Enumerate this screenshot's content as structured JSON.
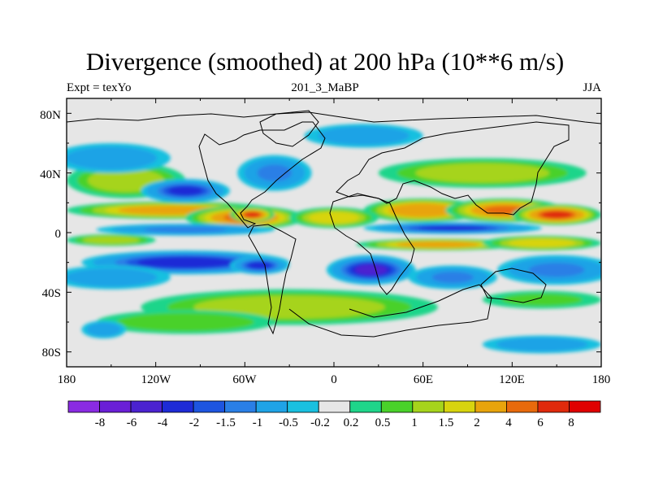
{
  "title": "Divergence (smoothed) at 200 hPa (10**6 m/s)",
  "left_string": "Expt = texYo",
  "center_string": "201_3_MaBP",
  "right_string": "JJA",
  "lat_ticks": [
    "80N",
    "40N",
    "0",
    "40S",
    "80S"
  ],
  "lon_ticks": [
    "180",
    "120W",
    "60W",
    "0",
    "60E",
    "120E",
    "180"
  ],
  "colorbar": {
    "labels": [
      "-8",
      "-6",
      "-4",
      "-2",
      "-1.5",
      "-1",
      "-0.5",
      "-0.2",
      "0.2",
      "0.5",
      "1",
      "1.5",
      "2",
      "4",
      "6",
      "8"
    ],
    "colors": [
      "#8a2be2",
      "#6a1fd6",
      "#4b22d0",
      "#1e2bd6",
      "#1d55e0",
      "#2a7fe6",
      "#1fa3e6",
      "#19c0e0",
      "#e6e6e6",
      "#1fd58a",
      "#49d12a",
      "#a6d41c",
      "#d8d40e",
      "#e8a40c",
      "#e86a0c",
      "#e02a0c",
      "#e00000"
    ]
  },
  "chart_data": {
    "type": "heatmap",
    "title": "Divergence (smoothed) at 200 hPa (10**6 m/s)",
    "xlabel": "",
    "ylabel": "",
    "xlim": [
      -180,
      180
    ],
    "ylim": [
      -90,
      90
    ],
    "grid": false,
    "levels": [
      -8,
      -6,
      -4,
      -2,
      -1.5,
      -1,
      -0.5,
      -0.2,
      0.2,
      0.5,
      1,
      1.5,
      2,
      4,
      6,
      8
    ],
    "features": [
      {
        "lon": -110,
        "lat": 15,
        "rlon": 70,
        "rlat": 6,
        "value": 2.2
      },
      {
        "lon": -60,
        "lat": 10,
        "rlon": 40,
        "rlat": 8,
        "value": 4.5
      },
      {
        "lon": -55,
        "lat": 12,
        "rlon": 15,
        "rlat": 5,
        "value": 6.5
      },
      {
        "lon": 60,
        "lat": 15,
        "rlon": 40,
        "rlat": 8,
        "value": 3.5
      },
      {
        "lon": 115,
        "lat": 15,
        "rlon": 40,
        "rlat": 8,
        "value": 5
      },
      {
        "lon": 150,
        "lat": 12,
        "rlon": 30,
        "rlat": 7,
        "value": 6
      },
      {
        "lon": 0,
        "lat": 10,
        "rlon": 30,
        "rlat": 7,
        "value": 1.8
      },
      {
        "lon": 70,
        "lat": -8,
        "rlon": 55,
        "rlat": 4,
        "value": 2.5
      },
      {
        "lon": 140,
        "lat": -7,
        "rlon": 40,
        "rlat": 5,
        "value": 1.8
      },
      {
        "lon": -150,
        "lat": -5,
        "rlon": 30,
        "rlat": 4,
        "value": 1.2
      },
      {
        "lon": -140,
        "lat": 35,
        "rlon": 40,
        "rlat": 12,
        "value": 1.3
      },
      {
        "lon": 100,
        "lat": 40,
        "rlon": 70,
        "rlat": 10,
        "value": 1.1
      },
      {
        "lon": -30,
        "lat": -50,
        "rlon": 100,
        "rlat": 12,
        "value": 1.2
      },
      {
        "lon": -100,
        "lat": -60,
        "rlon": 60,
        "rlat": 8,
        "value": 0.7
      },
      {
        "lon": 140,
        "lat": -45,
        "rlon": 40,
        "rlat": 6,
        "value": 0.6
      },
      {
        "lon": -100,
        "lat": 28,
        "rlon": 30,
        "rlat": 8,
        "value": -2.5
      },
      {
        "lon": -40,
        "lat": 40,
        "rlon": 25,
        "rlat": 12,
        "value": -1.5
      },
      {
        "lon": -150,
        "lat": 50,
        "rlon": 40,
        "rlat": 10,
        "value": -0.8
      },
      {
        "lon": 20,
        "lat": 65,
        "rlon": 40,
        "rlat": 8,
        "value": -0.8
      },
      {
        "lon": -100,
        "lat": 2,
        "rlon": 60,
        "rlat": 4,
        "value": -1.2
      },
      {
        "lon": 80,
        "lat": 3,
        "rlon": 60,
        "rlat": 4,
        "value": -2.2
      },
      {
        "lon": -100,
        "lat": -20,
        "rlon": 70,
        "rlat": 8,
        "value": -3.5
      },
      {
        "lon": -50,
        "lat": -22,
        "rlon": 20,
        "rlat": 6,
        "value": -2.5
      },
      {
        "lon": 25,
        "lat": -25,
        "rlon": 30,
        "rlat": 10,
        "value": -4.5
      },
      {
        "lon": 80,
        "lat": -30,
        "rlon": 30,
        "rlat": 8,
        "value": -1.5
      },
      {
        "lon": -150,
        "lat": -30,
        "rlon": 40,
        "rlat": 8,
        "value": -1
      },
      {
        "lon": 150,
        "lat": -25,
        "rlon": 40,
        "rlat": 10,
        "value": -1.2
      },
      {
        "lon": 140,
        "lat": -75,
        "rlon": 40,
        "rlat": 6,
        "value": -0.7
      },
      {
        "lon": -155,
        "lat": -65,
        "rlon": 15,
        "rlat": 6,
        "value": -0.8
      }
    ]
  }
}
